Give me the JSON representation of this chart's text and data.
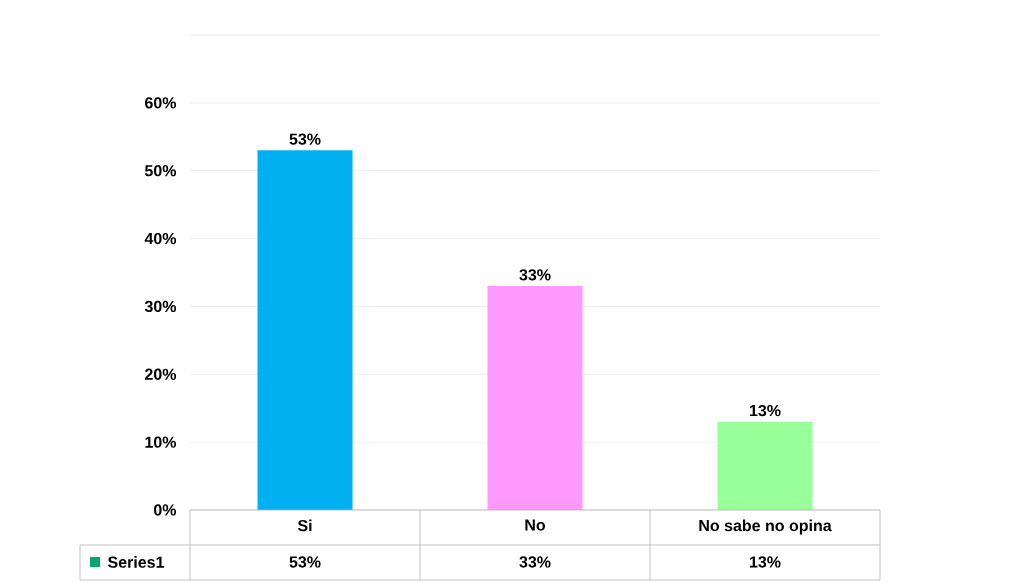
{
  "chart_data": {
    "type": "bar",
    "categories": [
      "Si",
      "No",
      "No sabe no opina"
    ],
    "series": [
      {
        "name": "Series1",
        "color": "#00a86b",
        "colors": [
          "#00b0f0",
          "#ff99ff",
          "#99ff99"
        ],
        "values": [
          53,
          33,
          13
        ],
        "value_labels": [
          "53%",
          "33%",
          "13%"
        ]
      }
    ],
    "ylim": [
      0,
      70
    ],
    "yticks": [
      {
        "value": 0,
        "label": "0%"
      },
      {
        "value": 10,
        "label": "10%"
      },
      {
        "value": 20,
        "label": "20%"
      },
      {
        "value": 30,
        "label": "30%"
      },
      {
        "value": 40,
        "label": "40%"
      },
      {
        "value": 50,
        "label": "50%"
      },
      {
        "value": 60,
        "label": "60%"
      },
      {
        "value": 70,
        "label": null
      }
    ],
    "grid": "y",
    "legend": "bottom"
  }
}
